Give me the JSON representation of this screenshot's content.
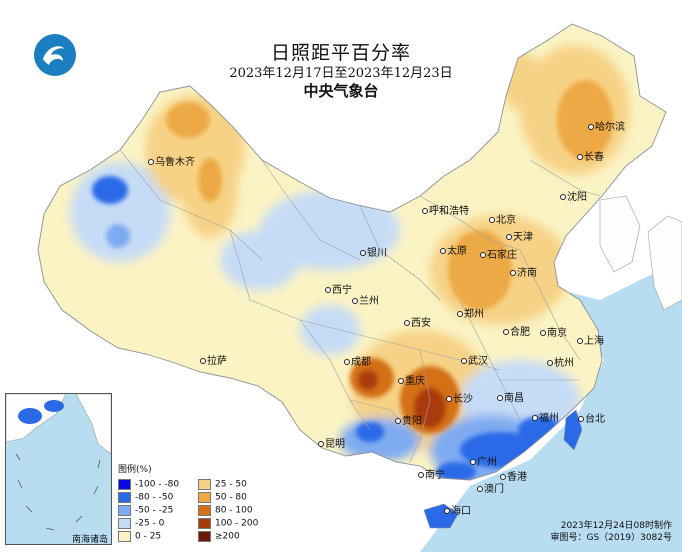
{
  "title": "日照距平百分率",
  "date_range": "2023年12月17日至2023年12月23日",
  "agency": "中央气象台",
  "legend": {
    "title": "图例(%)",
    "items": [
      {
        "label": "-100 - -80",
        "color": "#0a0adc"
      },
      {
        "label": "-80 - -50",
        "color": "#2a6ae8"
      },
      {
        "label": "-50 - -25",
        "color": "#7eaaf0"
      },
      {
        "label": "-25 - 0",
        "color": "#c6dcf6"
      },
      {
        "label": "0 - 25",
        "color": "#fbf3c4"
      },
      {
        "label": "25 - 50",
        "color": "#f6d286"
      },
      {
        "label": "50 - 80",
        "color": "#eda945"
      },
      {
        "label": "80 - 100",
        "color": "#d47015"
      },
      {
        "label": "100 - 200",
        "color": "#a93a0c"
      },
      {
        "label": "≥200",
        "color": "#6a1a08"
      }
    ]
  },
  "cities": [
    {
      "name": "哈尔滨"
    },
    {
      "name": "长春"
    },
    {
      "name": "沈阳"
    },
    {
      "name": "乌鲁木齐"
    },
    {
      "name": "呼和浩特"
    },
    {
      "name": "北京"
    },
    {
      "name": "天津"
    },
    {
      "name": "石家庄"
    },
    {
      "name": "太原"
    },
    {
      "name": "银川"
    },
    {
      "name": "西宁"
    },
    {
      "name": "兰州"
    },
    {
      "name": "济南"
    },
    {
      "name": "郑州"
    },
    {
      "name": "西安"
    },
    {
      "name": "合肥"
    },
    {
      "name": "南京"
    },
    {
      "name": "上海"
    },
    {
      "name": "杭州"
    },
    {
      "name": "武汉"
    },
    {
      "name": "成都"
    },
    {
      "name": "重庆"
    },
    {
      "name": "拉萨"
    },
    {
      "name": "长沙"
    },
    {
      "name": "南昌"
    },
    {
      "name": "福州"
    },
    {
      "name": "贵阳"
    },
    {
      "name": "昆明"
    },
    {
      "name": "台北"
    },
    {
      "name": "南宁"
    },
    {
      "name": "广州"
    },
    {
      "name": "香港"
    },
    {
      "name": "澳门"
    },
    {
      "name": "海口"
    }
  ],
  "inset_label": "南海诸岛",
  "footer": {
    "made": "2023年12月24日08时制作",
    "review": "审图号：GS（2019）3082号"
  },
  "colors": {
    "sea": "#b8dcf0",
    "land_outside": "#fdfdfb",
    "border": "#9aa0a8"
  }
}
